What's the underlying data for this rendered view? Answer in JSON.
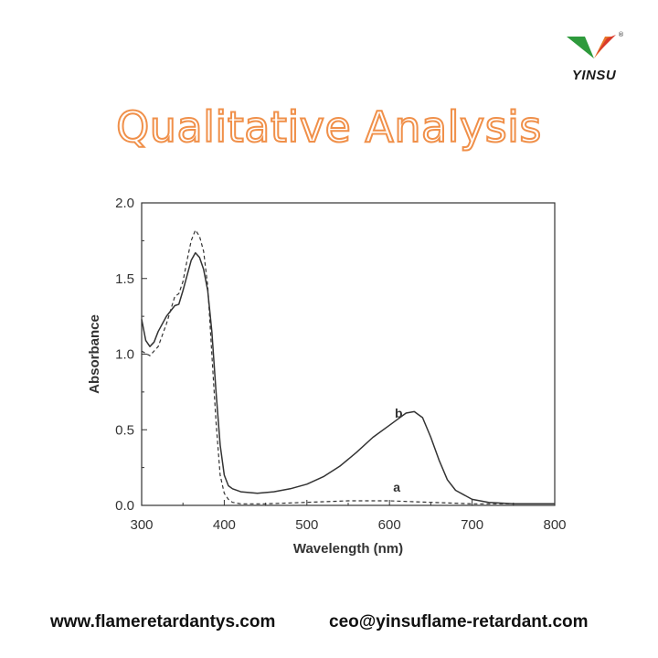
{
  "brand": {
    "name": "YINSU",
    "colors": {
      "green": "#2e9a3c",
      "orange": "#e8752a",
      "red": "#d93a2b"
    },
    "registered_mark": "®"
  },
  "headline": "Qualitative Analysis",
  "footer": {
    "website": "www.flameretardantys.com",
    "email": "ceo@yinsuflame-retardant.com"
  },
  "chart_data": {
    "type": "line",
    "xlabel": "Wavelength (nm)",
    "ylabel": "Absorbance",
    "xlim": [
      300,
      800
    ],
    "ylim": [
      0.0,
      2.0
    ],
    "xticks": [
      "300",
      "400",
      "500",
      "600",
      "700",
      "800"
    ],
    "yticks": [
      "0.0",
      "0.5",
      "1.0",
      "1.5",
      "2.0"
    ],
    "grid": false,
    "legend": "none",
    "series": [
      {
        "name": "a",
        "style": "dashed",
        "label_at": [
          600,
          0.09
        ],
        "x": [
          300,
          310,
          320,
          330,
          340,
          345,
          350,
          355,
          360,
          365,
          370,
          375,
          380,
          385,
          390,
          395,
          400,
          405,
          410,
          420,
          450,
          500,
          550,
          600,
          650,
          700,
          750,
          800
        ],
        "y": [
          1.02,
          0.99,
          1.05,
          1.2,
          1.38,
          1.4,
          1.48,
          1.62,
          1.75,
          1.82,
          1.78,
          1.68,
          1.45,
          1.0,
          0.55,
          0.2,
          0.08,
          0.04,
          0.02,
          0.01,
          0.01,
          0.02,
          0.03,
          0.03,
          0.02,
          0.01,
          0.01,
          0.01
        ]
      },
      {
        "name": "b",
        "style": "solid",
        "label_at": [
          602,
          0.58
        ],
        "x": [
          300,
          305,
          310,
          315,
          320,
          330,
          340,
          345,
          350,
          355,
          360,
          365,
          370,
          375,
          380,
          385,
          390,
          395,
          400,
          405,
          410,
          420,
          440,
          460,
          480,
          500,
          520,
          540,
          560,
          580,
          600,
          610,
          620,
          630,
          640,
          650,
          660,
          670,
          680,
          700,
          720,
          750,
          800
        ],
        "y": [
          1.23,
          1.09,
          1.05,
          1.08,
          1.15,
          1.25,
          1.32,
          1.33,
          1.42,
          1.52,
          1.62,
          1.67,
          1.64,
          1.56,
          1.42,
          1.15,
          0.75,
          0.4,
          0.2,
          0.13,
          0.11,
          0.09,
          0.08,
          0.09,
          0.11,
          0.14,
          0.19,
          0.26,
          0.35,
          0.45,
          0.53,
          0.57,
          0.61,
          0.62,
          0.58,
          0.45,
          0.3,
          0.17,
          0.1,
          0.04,
          0.02,
          0.01,
          0.01
        ]
      }
    ]
  }
}
